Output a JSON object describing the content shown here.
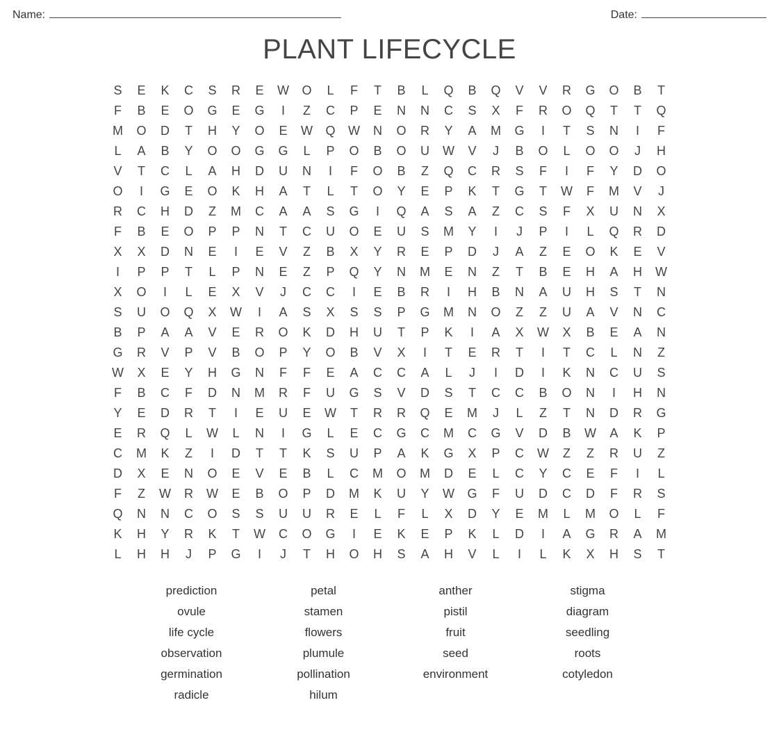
{
  "header": {
    "name_label": "Name:",
    "date_label": "Date:"
  },
  "title": "PLANT LIFECYCLE",
  "grid": {
    "rows": [
      "SEKCSREWOLFTBLQBQVVRGOBT",
      "FBEOGEGIZCPENNCSXFROQTTQ",
      "MODTHYOEWQWNORYAMGITSNIF",
      "LABYOOGGLPOBOUWVJBOLOOJH",
      "VTCLAHDUNIFOBZQCRSFIFYDO",
      "OIGEOKHATLTOYEPKTGTWFMVJ",
      "RCHDZMCAASGIQASAZCSFXUNX",
      "FBEOPPNTCUOEUSMYIJPILQRD",
      "XXDNEIEVZBXYREPDJAZEOKEV",
      "IPPTLPNEZPQYNMENZTBEHAHW",
      "XOILEXVJCCIEBRIHBNAUHSTN",
      "SUOQXWIASXSSPGMNOZZUAVNC",
      "BPAAVEROKDHUTPKIAXWXBEAN",
      "GRVPVBOPYOBVXITERTITCLNZ",
      "WXEYHGNFFEACCALJIDIKNCUS",
      "FBCFDNMRFUGSVDSTCCBONIHN",
      "YEDRTIEUEWTRRQEMJLZTNDRG",
      "ERQLWLNIGLECGCMCGVDBWAKP",
      "CMKZIDTTKSUPAKGXPCWZZRUZ",
      "DXENOEVEBLCMOMDELCYCEFIL",
      "FZWRWEBOPDMKUYWGFUDCDFRS",
      "QNNCOSSUURELFLXDYEMLMOLF",
      "KHYRKTWCOGIEKEPKLDIAGRAM",
      "LHHJPGIJTHOHSAHVLILKXHST"
    ],
    "cell_fontsize": 18,
    "cell_color": "#444444",
    "cols": 24,
    "rows_count": 24
  },
  "words": {
    "columns": [
      [
        "prediction",
        "ovule",
        "life cycle",
        "observation",
        "germination",
        "radicle"
      ],
      [
        "petal",
        "stamen",
        "flowers",
        "plumule",
        "pollination",
        "hilum"
      ],
      [
        "anther",
        "pistil",
        "fruit",
        "seed",
        "environment"
      ],
      [
        "stigma",
        "diagram",
        "seedling",
        "roots",
        "cotyledon"
      ]
    ],
    "fontsize": 17,
    "color": "#333333"
  },
  "style": {
    "background_color": "#ffffff",
    "title_fontsize": 40,
    "title_color": "#444444",
    "header_fontsize": 16
  }
}
